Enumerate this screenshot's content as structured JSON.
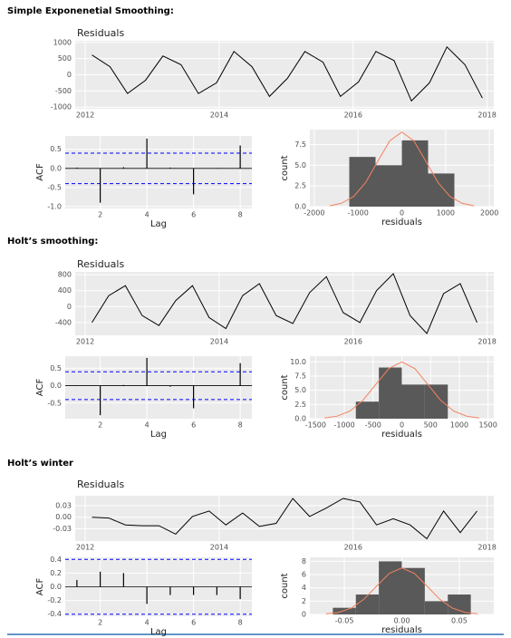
{
  "headings": [
    "Simple Exponenetial Smoothing:",
    "Holt’s smoothing:",
    "Holt’s winter"
  ],
  "chart_data": [
    {
      "type": "line",
      "title": "Residuals",
      "color": "#000000",
      "grid": true,
      "x": [
        2012.1,
        2012.37,
        2012.63,
        2012.9,
        2013.16,
        2013.43,
        2013.69,
        2013.96,
        2014.22,
        2014.49,
        2014.75,
        2015.02,
        2015.28,
        2015.55,
        2015.81,
        2016.08,
        2016.34,
        2016.61,
        2016.87,
        2017.14,
        2017.4,
        2017.67,
        2017.93
      ],
      "values": [
        610,
        250,
        -580,
        -170,
        580,
        310,
        -580,
        -250,
        720,
        250,
        -670,
        -110,
        720,
        390,
        -670,
        -220,
        720,
        440,
        -810,
        -250,
        860,
        310,
        -720
      ],
      "xlim": [
        2011.85,
        2018.1
      ],
      "xticks": [
        2012,
        2014,
        2016,
        2018
      ],
      "ylim": [
        -1050,
        1050
      ],
      "yticks": [
        1000,
        500,
        0,
        -500,
        -1000
      ]
    },
    {
      "type": "acf",
      "xlabel": "Lag",
      "ylabel": "ACF",
      "color": "#000000",
      "band_color": "#0000ff",
      "grid": true,
      "lags": [
        1,
        2,
        3,
        4,
        5,
        6,
        7,
        8
      ],
      "values": [
        0.02,
        -0.9,
        0.03,
        0.78,
        0.02,
        -0.68,
        0.01,
        0.6
      ],
      "confidence": [
        0.4,
        -0.4
      ],
      "xlim": [
        0.5,
        8.5
      ],
      "xticks": [
        2,
        4,
        6,
        8
      ],
      "ylim": [
        -1.05,
        0.85
      ],
      "yticks": [
        {
          "value": 0.5,
          "label": "0.5"
        },
        {
          "value": 0,
          "label": "0.0"
        },
        {
          "value": -0.5,
          "label": "-0.5"
        },
        {
          "value": -1,
          "label": "-1.0"
        }
      ]
    },
    {
      "type": "histogram",
      "xlabel": "residuals",
      "ylabel": "count",
      "color": "#595959",
      "grid": true,
      "bins": [
        -1200,
        -600,
        0,
        600,
        1200
      ],
      "values": [
        6,
        5,
        8,
        4
      ],
      "curve": {
        "color": "#f4825f",
        "x": [
          -1650,
          -1375,
          -1100,
          -825,
          -550,
          -275,
          0,
          275,
          550,
          825,
          1100,
          1375,
          1650
        ],
        "values": [
          0.1,
          0.4,
          1.22,
          2.92,
          5.46,
          7.94,
          9,
          7.94,
          5.46,
          2.92,
          1.22,
          0.4,
          0.1
        ]
      },
      "xlim": [
        -2100,
        2100
      ],
      "xticks": [
        -2000,
        -1000,
        0,
        1000,
        2000
      ],
      "ylim": [
        0,
        9.3
      ],
      "yticks": [
        {
          "value": 0,
          "label": "0.0"
        },
        2.5,
        {
          "value": 5,
          "label": "5.0"
        },
        7.5
      ]
    },
    {
      "type": "line",
      "title": "Residuals",
      "color": "#000000",
      "grid": true,
      "x": [
        2012.1,
        2012.35,
        2012.6,
        2012.85,
        2013.1,
        2013.35,
        2013.6,
        2013.85,
        2014.1,
        2014.35,
        2014.6,
        2014.85,
        2015.1,
        2015.35,
        2015.6,
        2015.85,
        2016.1,
        2016.35,
        2016.6,
        2016.85,
        2017.1,
        2017.35,
        2017.6,
        2017.85
      ],
      "values": [
        -400,
        275,
        525,
        -225,
        -475,
        150,
        525,
        -275,
        -550,
        275,
        575,
        -225,
        -425,
        350,
        750,
        -150,
        -400,
        400,
        825,
        -225,
        -675,
        325,
        575,
        -400
      ],
      "xlim": [
        2011.85,
        2018.1
      ],
      "xticks": [
        2012,
        2014,
        2016,
        2018
      ],
      "ylim": [
        -720,
        870
      ],
      "yticks": [
        800,
        400,
        0,
        -400
      ]
    },
    {
      "type": "acf",
      "xlabel": "Lag",
      "ylabel": "ACF",
      "color": "#000000",
      "band_color": "#0000ff",
      "grid": true,
      "lags": [
        1,
        2,
        3,
        4,
        5,
        6,
        7,
        8
      ],
      "values": [
        0.01,
        -0.85,
        0.02,
        0.8,
        -0.03,
        -0.65,
        0,
        0.65
      ],
      "confidence": [
        0.4,
        -0.4
      ],
      "xlim": [
        0.5,
        8.5
      ],
      "xticks": [
        2,
        4,
        6,
        8
      ],
      "ylim": [
        -0.95,
        0.85
      ],
      "yticks": [
        {
          "value": 0.5,
          "label": "0.5"
        },
        {
          "value": 0,
          "label": "0.0"
        },
        {
          "value": -0.5,
          "label": "-0.5"
        }
      ]
    },
    {
      "type": "histogram",
      "xlabel": "residuals",
      "ylabel": "count",
      "color": "#595959",
      "grid": true,
      "bins": [
        -800,
        -400,
        0,
        400,
        800
      ],
      "values": [
        3,
        9,
        6,
        6
      ],
      "curve": {
        "color": "#f4825f",
        "x": [
          -1350,
          -1125,
          -900,
          -675,
          -450,
          -225,
          0,
          225,
          450,
          675,
          900,
          1125,
          1350
        ],
        "values": [
          0.11,
          0.44,
          1.35,
          3.25,
          6.07,
          8.82,
          10,
          8.82,
          6.07,
          3.25,
          1.35,
          0.44,
          0.11
        ]
      },
      "xlim": [
        -1600,
        1600
      ],
      "xticks": [
        -1500,
        -1000,
        -500,
        0,
        500,
        1000,
        1500
      ],
      "ylim": [
        0,
        11
      ],
      "yticks": [
        {
          "value": 0,
          "label": "0.0"
        },
        2.5,
        {
          "value": 5,
          "label": "5.0"
        },
        7.5,
        {
          "value": 10,
          "label": "10.0"
        }
      ]
    },
    {
      "type": "line",
      "title": "Residuals",
      "color": "#000000",
      "grid": true,
      "x": [
        2012.1,
        2012.35,
        2012.6,
        2012.85,
        2013.1,
        2013.35,
        2013.6,
        2013.85,
        2014.1,
        2014.35,
        2014.6,
        2014.85,
        2015.1,
        2015.35,
        2015.6,
        2015.85,
        2016.1,
        2016.35,
        2016.6,
        2016.85,
        2017.1,
        2017.35,
        2017.6,
        2017.85
      ],
      "values": [
        0,
        -0.002,
        -0.02,
        -0.022,
        -0.022,
        -0.044,
        0.002,
        0.016,
        -0.02,
        0.011,
        -0.024,
        -0.016,
        0.049,
        0.002,
        0.024,
        0.049,
        0.04,
        -0.02,
        -0.004,
        -0.02,
        -0.056,
        0.016,
        -0.04,
        0.016
      ],
      "xlim": [
        2011.85,
        2018.1
      ],
      "xticks": [
        2012,
        2014,
        2016,
        2018
      ],
      "ylim": [
        -0.062,
        0.056
      ],
      "yticks": [
        0.03,
        {
          "value": 0,
          "label": "0.00"
        },
        -0.03
      ]
    },
    {
      "type": "acf",
      "xlabel": "Lag",
      "ylabel": "ACF",
      "color": "#000000",
      "band_color": "#0000ff",
      "grid": true,
      "lags": [
        1,
        2,
        3,
        4,
        5,
        6,
        7,
        8
      ],
      "values": [
        0.1,
        0.22,
        0.2,
        -0.25,
        -0.12,
        -0.12,
        -0.12,
        -0.18
      ],
      "confidence": [
        0.4,
        -0.4
      ],
      "xlim": [
        0.5,
        8.5
      ],
      "xticks": [
        2,
        4,
        6,
        8
      ],
      "ylim": [
        -0.43,
        0.43
      ],
      "yticks": [
        0.4,
        0.2,
        {
          "value": 0,
          "label": "0.0"
        },
        -0.2,
        -0.4
      ]
    },
    {
      "type": "histogram",
      "xlabel": "residuals",
      "ylabel": "count",
      "color": "#595959",
      "grid": true,
      "bins": [
        -0.06,
        -0.04,
        -0.02,
        0,
        0.02,
        0.04,
        0.06
      ],
      "values": [
        1,
        3,
        8,
        7,
        2,
        3
      ],
      "curve": {
        "color": "#f4825f",
        "x": [
          -0.066,
          -0.055,
          -0.044,
          -0.033,
          -0.022,
          -0.011,
          0,
          0.011,
          0.022,
          0.033,
          0.044,
          0.055,
          0.066
        ],
        "values": [
          0.08,
          0.31,
          0.95,
          2.28,
          4.25,
          6.17,
          7,
          6.17,
          4.25,
          2.28,
          0.95,
          0.31,
          0.08
        ]
      },
      "xlim": [
        -0.08,
        0.08
      ],
      "xticks": [
        -0.05,
        {
          "value": 0,
          "label": "0.00"
        },
        0.05
      ],
      "ylim": [
        0,
        8.6
      ],
      "yticks": [
        0,
        2,
        4,
        6,
        8
      ]
    }
  ]
}
